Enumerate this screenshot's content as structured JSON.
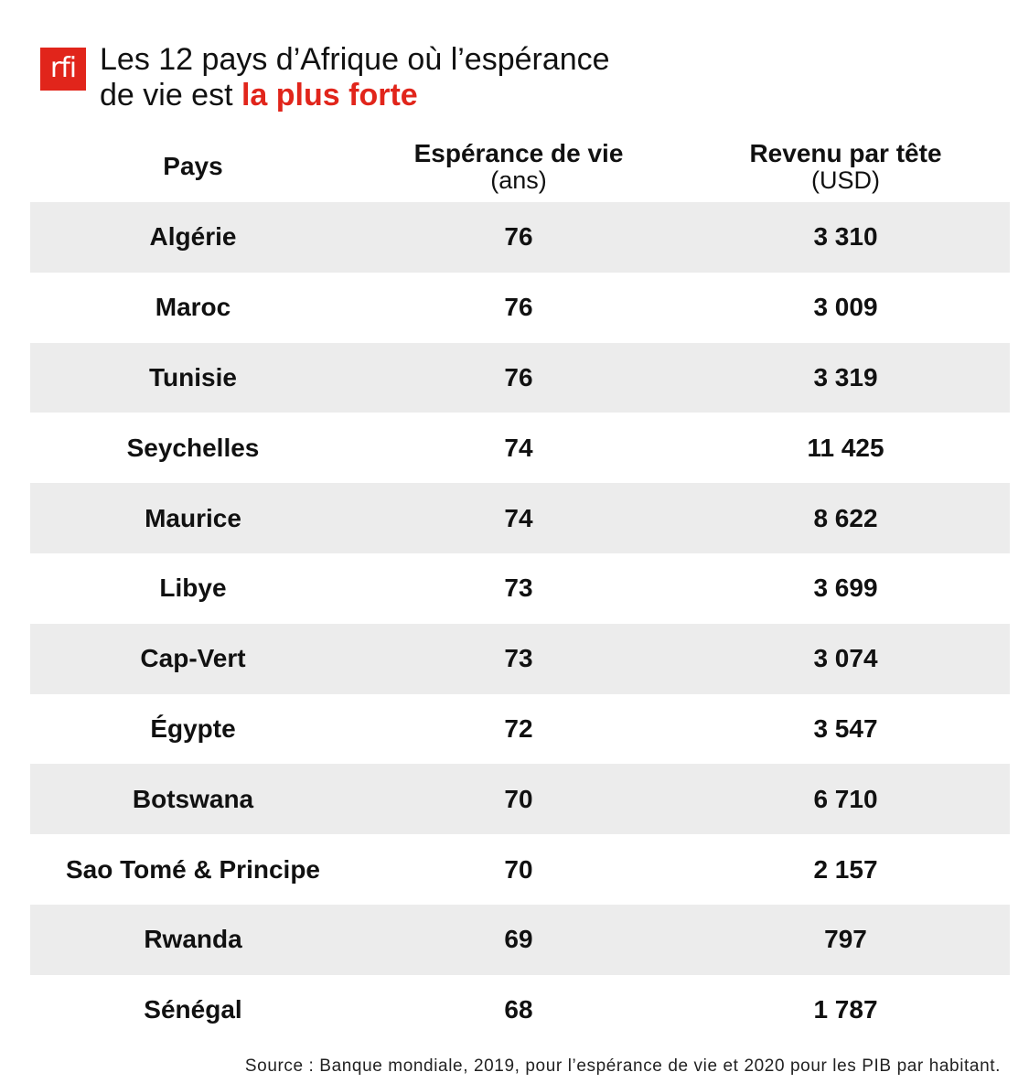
{
  "brand": {
    "logo_text": "rfi",
    "color": "#e1251b"
  },
  "title": {
    "line1": "Les 12 pays d’Afrique où l’espérance",
    "line2_prefix": "de vie est ",
    "line2_highlight": "la plus forte"
  },
  "chart_data": {
    "type": "table",
    "title": "Les 12 pays d’Afrique où l’espérance de vie est la plus forte",
    "columns": [
      {
        "label": "Pays",
        "unit": ""
      },
      {
        "label": "Espérance de vie",
        "unit": "(ans)"
      },
      {
        "label": "Revenu par tête",
        "unit": "(USD)"
      }
    ],
    "rows": [
      {
        "country": "Algérie",
        "life_expectancy": "76",
        "income": "3 310"
      },
      {
        "country": "Maroc",
        "life_expectancy": "76",
        "income": "3 009"
      },
      {
        "country": "Tunisie",
        "life_expectancy": "76",
        "income": "3 319"
      },
      {
        "country": "Seychelles",
        "life_expectancy": "74",
        "income": "11 425"
      },
      {
        "country": "Maurice",
        "life_expectancy": "74",
        "income": "8 622"
      },
      {
        "country": "Libye",
        "life_expectancy": "73",
        "income": "3 699"
      },
      {
        "country": "Cap-Vert",
        "life_expectancy": "73",
        "income": "3 074"
      },
      {
        "country": "Égypte",
        "life_expectancy": "72",
        "income": "3 547"
      },
      {
        "country": "Botswana",
        "life_expectancy": "70",
        "income": "6 710"
      },
      {
        "country": "Sao Tomé & Principe",
        "life_expectancy": "70",
        "income": "2 157"
      },
      {
        "country": "Rwanda",
        "life_expectancy": "69",
        "income": "797"
      },
      {
        "country": "Sénégal",
        "life_expectancy": "68",
        "income": "1 787"
      }
    ],
    "row_shading": {
      "color": "#ececec",
      "pattern": "alternate, starting with first row"
    }
  },
  "source": "Source : Banque mondiale, 2019, pour l’espérance de vie et 2020 pour les PIB par habitant."
}
